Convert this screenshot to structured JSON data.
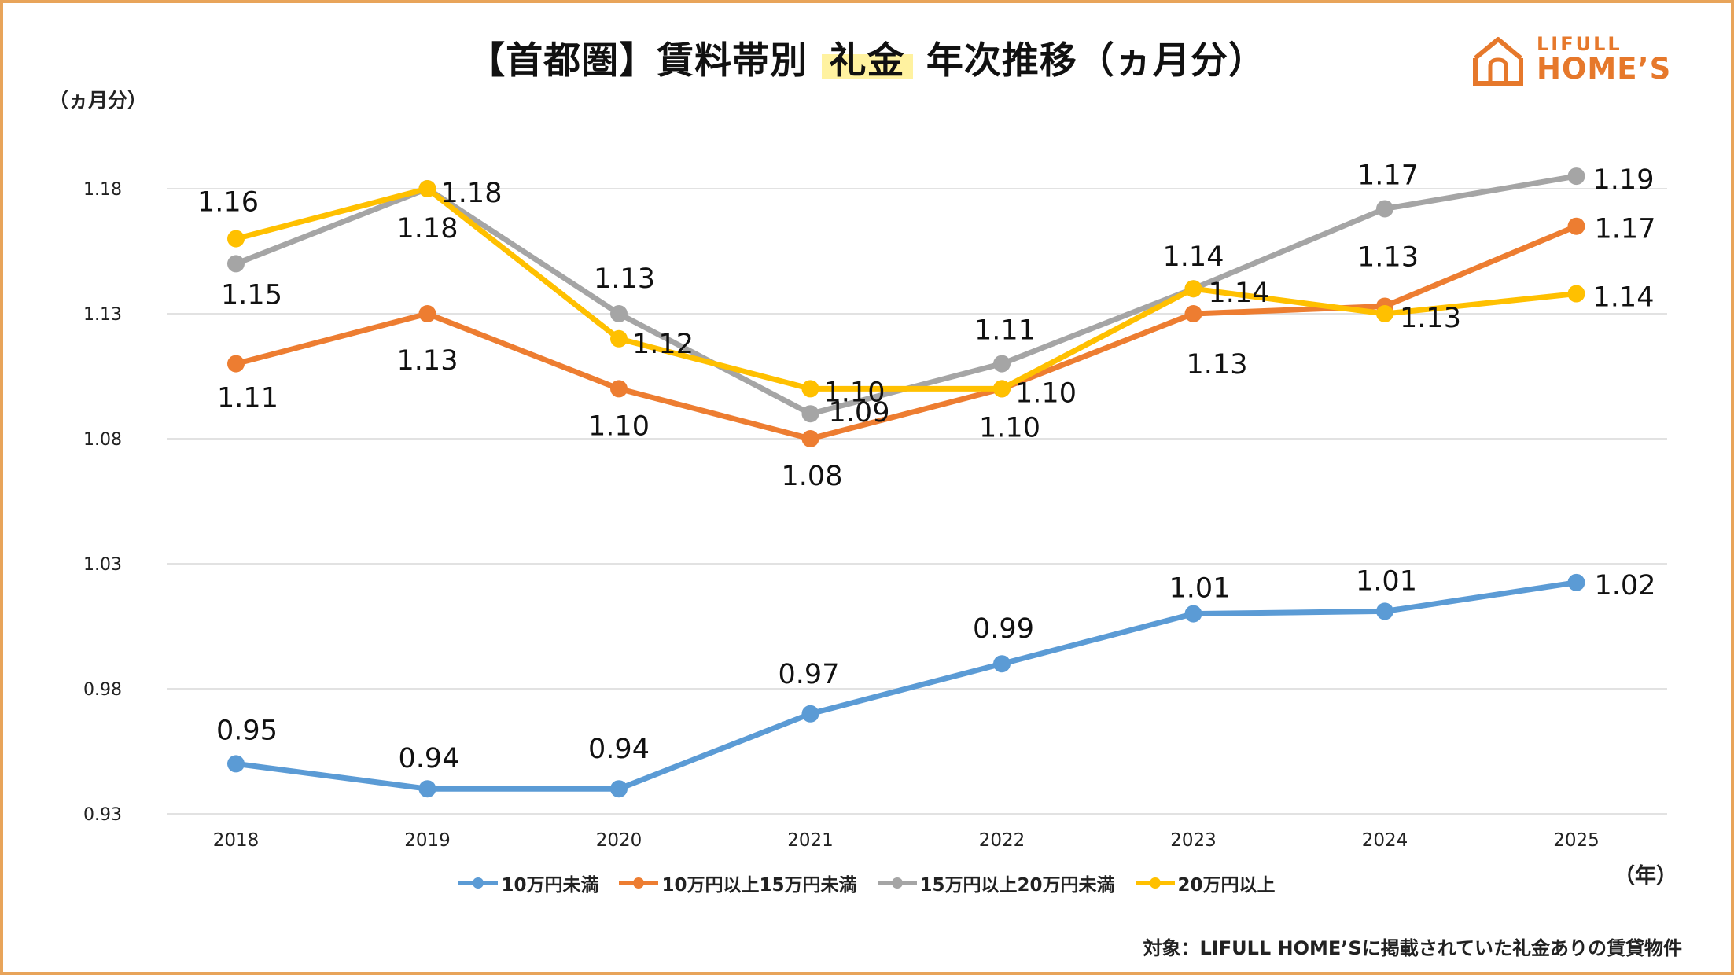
{
  "header": {
    "title_pre": "【首都圏】賃料帯別",
    "title_highlight": "礼金",
    "title_post": "年次推移（ヵ月分）",
    "y_unit_label": "（ヵ月分）",
    "x_unit_label": "（年）",
    "footnote": "対象：LIFULL HOME’Sに掲載されていた礼金ありの賃貸物件"
  },
  "logo": {
    "top": "LIFULL",
    "bottom": "HOME’S",
    "icon": "house-icon",
    "color": "#E6782B"
  },
  "colors": {
    "frame": "#E8A45A",
    "grid": "#D9D9D9"
  },
  "chart_data": {
    "type": "line",
    "categories": [
      "2018",
      "2019",
      "2020",
      "2021",
      "2022",
      "2023",
      "2024",
      "2025"
    ],
    "ylim": [
      0.93,
      1.2
    ],
    "yticks": [
      "0.93",
      "0.98",
      "1.03",
      "1.08",
      "1.13",
      "1.18"
    ],
    "ylabel": "（ヵ月分）",
    "xlabel": "（年）",
    "grid": true,
    "legend_position": "bottom",
    "series": [
      {
        "name": "10万円未満",
        "color": "#5B9BD5",
        "values": [
          0.95,
          0.94,
          0.94,
          0.97,
          0.99,
          1.01,
          1.01,
          1.02
        ],
        "plot_values": [
          0.95,
          0.94,
          0.94,
          0.97,
          0.99,
          1.01,
          1.011,
          1.0225
        ],
        "labels": [
          "0.95",
          "0.94",
          "0.94",
          "0.97",
          "0.99",
          "1.01",
          "1.01",
          "1.02"
        ]
      },
      {
        "name": "10万円以上15万円未満",
        "color": "#ED7D31",
        "values": [
          1.11,
          1.13,
          1.1,
          1.08,
          1.1,
          1.13,
          1.13,
          1.17
        ],
        "plot_values": [
          1.11,
          1.13,
          1.1,
          1.08,
          1.1,
          1.13,
          1.133,
          1.165
        ],
        "labels": [
          "1.11",
          "1.13",
          "1.10",
          "1.08",
          "1.10",
          "1.13",
          "1.13",
          "1.17"
        ]
      },
      {
        "name": "15万円以上20万円未満",
        "color": "#A5A5A5",
        "values": [
          1.15,
          1.18,
          1.13,
          1.09,
          1.11,
          1.14,
          1.17,
          1.19
        ],
        "plot_values": [
          1.15,
          1.18,
          1.13,
          1.09,
          1.11,
          1.14,
          1.172,
          1.185
        ],
        "labels": [
          "1.15",
          "1.18",
          "1.13",
          "1.09",
          "1.11",
          "1.14",
          "1.17",
          "1.19"
        ]
      },
      {
        "name": "20万円以上",
        "color": "#FFC000",
        "values": [
          1.16,
          1.18,
          1.12,
          1.1,
          1.1,
          1.14,
          1.13,
          1.14
        ],
        "plot_values": [
          1.16,
          1.18,
          1.12,
          1.1,
          1.1,
          1.14,
          1.13,
          1.138
        ],
        "labels": [
          "1.16",
          "1.18",
          "1.12",
          "1.10",
          "1.10",
          "1.14",
          "1.13",
          "1.14"
        ]
      }
    ]
  }
}
